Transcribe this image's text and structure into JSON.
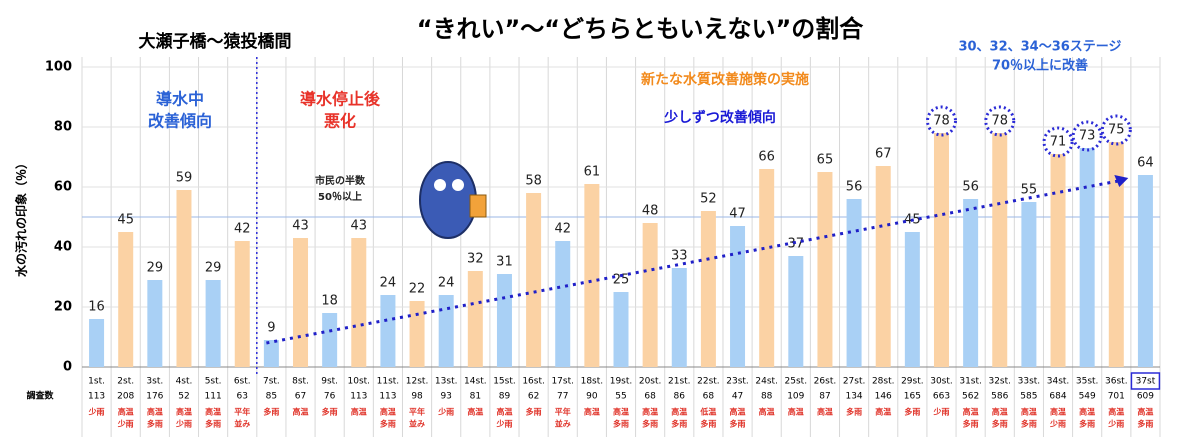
{
  "chart_data": {
    "type": "bar",
    "title": "“きれい”～“どちらともいえない”の割合",
    "subtitle": "大瀬子橋～猿投橋間",
    "ylabel": "水の汚れの印象（％）",
    "categories": [
      "1st.",
      "2st.",
      "3st.",
      "4st.",
      "5st.",
      "6st.",
      "7st.",
      "8st.",
      "9st.",
      "10st.",
      "11st.",
      "12st.",
      "13st.",
      "14st.",
      "15st.",
      "16st.",
      "17st.",
      "18st.",
      "19st.",
      "20st.",
      "21st.",
      "22st.",
      "23st.",
      "24st.",
      "25st.",
      "26st.",
      "27st.",
      "28st.",
      "29st.",
      "30st.",
      "31st.",
      "32st.",
      "33st.",
      "34st.",
      "35st.",
      "36st.",
      "37st"
    ],
    "values": [
      16,
      45,
      29,
      59,
      29,
      42,
      9,
      43,
      18,
      43,
      24,
      22,
      24,
      32,
      31,
      58,
      42,
      61,
      25,
      48,
      33,
      52,
      47,
      66,
      37,
      65,
      56,
      67,
      45,
      78,
      56,
      78,
      55,
      71,
      73,
      75,
      64
    ],
    "colors": [
      "#fbd2a4",
      "#a9d0f5"
    ],
    "survey_label": "調査数",
    "survey_counts": [
      113,
      208,
      176,
      52,
      111,
      63,
      85,
      67,
      76,
      113,
      113,
      98,
      93,
      81,
      89,
      62,
      77,
      90,
      55,
      68,
      86,
      68,
      47,
      88,
      109,
      87,
      134,
      146,
      165,
      663,
      562,
      586,
      585,
      684,
      549,
      701,
      609
    ],
    "weather": [
      [
        "少雨"
      ],
      [
        "高温",
        "少雨"
      ],
      [
        "高温",
        "多雨"
      ],
      [
        "高温",
        "少雨"
      ],
      [
        "高温",
        "多雨"
      ],
      [
        "平年",
        "並み"
      ],
      [
        "多雨"
      ],
      [
        "高温"
      ],
      [
        "多雨"
      ],
      [
        "高温"
      ],
      [
        "高温",
        "多雨"
      ],
      [
        "平年",
        "並み"
      ],
      [
        "少雨"
      ],
      [
        "高温"
      ],
      [
        "高温",
        "少雨"
      ],
      [
        "多雨"
      ],
      [
        "平年",
        "並み"
      ],
      [
        "高温"
      ],
      [
        "高温",
        "多雨"
      ],
      [
        "高温",
        "多雨"
      ],
      [
        "高温",
        "多雨"
      ],
      [
        "低温",
        "多雨"
      ],
      [
        "高温",
        "多雨"
      ],
      [
        "高温"
      ],
      [
        "高温"
      ],
      [
        "高温"
      ],
      [
        "多雨"
      ],
      [
        "高温"
      ],
      [
        "多雨"
      ],
      [
        "少雨"
      ],
      [
        "高温",
        "多雨"
      ],
      [
        "高温",
        "多雨"
      ],
      [
        "高温",
        "多雨"
      ],
      [
        "高温",
        "少雨"
      ],
      [
        "高温",
        "多雨"
      ],
      [
        "高温",
        "少雨"
      ],
      [
        "高温",
        "多雨"
      ]
    ],
    "annotations": [
      {
        "lines": [
          "導水中",
          "改善傾向"
        ],
        "color": "#2b62d6"
      },
      {
        "lines": [
          "導水停止後",
          "悪化"
        ],
        "color": "#e8332a"
      },
      {
        "lines": [
          "新たな水質改善施策の実施"
        ],
        "color": "#f28a1c"
      },
      {
        "lines": [
          "少しずつ改善傾向"
        ],
        "color": "#1a1ad6"
      },
      {
        "lines": [
          "30、32、34～36ステージ",
          "70％以上に改善"
        ],
        "color": "#2b62d6"
      },
      {
        "lines": [
          "市民の半数",
          "50％以上"
        ],
        "color": "#222222"
      }
    ],
    "hline": 50,
    "ylim": [
      0,
      100
    ],
    "yticks": [
      0,
      20,
      40,
      60,
      80,
      100
    ],
    "grid": true
  }
}
